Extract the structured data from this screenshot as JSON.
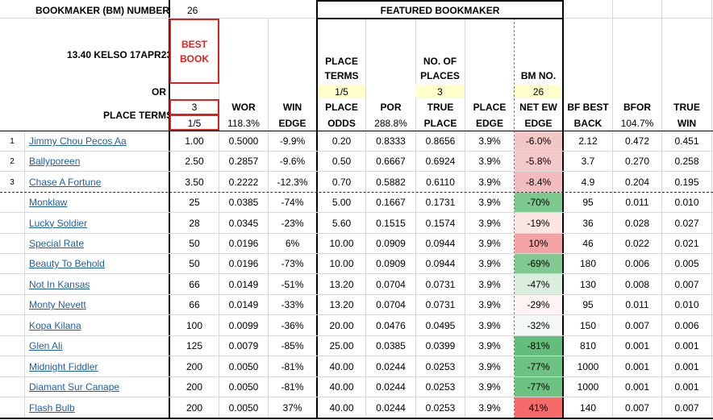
{
  "header": {
    "bm_number_label": "BOOKMAKER (BM) NUMBER",
    "bm_number_value": "26",
    "featured_label": "FEATURED BOOKMAKER",
    "race": "13.40 KELSO 17APR23",
    "best_book_line1": "BEST",
    "best_book_line2": "BOOK",
    "or_label": "OR",
    "place_terms_label": "PLACE TERMS",
    "place_terms_places": "3",
    "place_terms_fraction": "1/5",
    "featured_place_terms_1": "PLACE",
    "featured_place_terms_2": "TERMS",
    "featured_place_terms_value": "1/5",
    "featured_no_places_1": "NO. OF",
    "featured_no_places_2": "PLACES",
    "featured_no_places_value": "3",
    "featured_bm_no_label": "BM NO.",
    "featured_bm_no_value": "26"
  },
  "columns": {
    "wor": "WOR",
    "wor_sub": "118.3%",
    "win_edge_1": "WIN",
    "win_edge_2": "EDGE",
    "place_odds_1": "PLACE",
    "place_odds_2": "ODDS",
    "por": "POR",
    "por_sub": "288.8%",
    "true_place_1": "TRUE",
    "true_place_2": "PLACE",
    "place_edge_1": "PLACE",
    "place_edge_2": "EDGE",
    "net_ew_1": "NET EW",
    "net_ew_2": "EDGE",
    "bf_best_1": "BF BEST",
    "bf_best_2": "BACK",
    "bfor": "BFOR",
    "bfor_sub": "104.7%",
    "true_win_1": "TRUE",
    "true_win_2": "WIN"
  },
  "rows": [
    {
      "rank": "1",
      "name": "Jimmy Chou Pecos Aa",
      "odds": "1.00",
      "wor": "0.5000",
      "win_edge": "-9.9%",
      "place_odds": "0.20",
      "por": "0.8333",
      "true_place": "0.8656",
      "place_edge": "3.9%",
      "net_ew": "-6.0%",
      "net_color": "#f4c7c7",
      "bf": "2.12",
      "bfor": "0.472",
      "true_win": "0.451"
    },
    {
      "rank": "2",
      "name": "Ballyporeen",
      "odds": "2.50",
      "wor": "0.2857",
      "win_edge": "-9.6%",
      "place_odds": "0.50",
      "por": "0.6667",
      "true_place": "0.6924",
      "place_edge": "3.9%",
      "net_ew": "-5.8%",
      "net_color": "#f4c9c9",
      "bf": "3.7",
      "bfor": "0.270",
      "true_win": "0.258"
    },
    {
      "rank": "3",
      "name": "Chase A Fortune",
      "odds": "3.50",
      "wor": "0.2222",
      "win_edge": "-12.3%",
      "place_odds": "0.70",
      "por": "0.5882",
      "true_place": "0.6110",
      "place_edge": "3.9%",
      "net_ew": "-8.4%",
      "net_color": "#f2bcbc",
      "bf": "4.9",
      "bfor": "0.204",
      "true_win": "0.195"
    },
    {
      "rank": "",
      "name": "Monklaw",
      "odds": "25",
      "wor": "0.0385",
      "win_edge": "-74%",
      "place_odds": "5.00",
      "por": "0.1667",
      "true_place": "0.1731",
      "place_edge": "3.9%",
      "net_ew": "-70%",
      "net_color": "#7cc88e",
      "bf": "95",
      "bfor": "0.011",
      "true_win": "0.010"
    },
    {
      "rank": "",
      "name": "Lucky Soldier",
      "odds": "28",
      "wor": "0.0345",
      "win_edge": "-23%",
      "place_odds": "5.60",
      "por": "0.1515",
      "true_place": "0.1574",
      "place_edge": "3.9%",
      "net_ew": "-19%",
      "net_color": "#fbe4e4",
      "bf": "36",
      "bfor": "0.028",
      "true_win": "0.027"
    },
    {
      "rank": "",
      "name": "Special Rate",
      "odds": "50",
      "wor": "0.0196",
      "win_edge": "6%",
      "place_odds": "10.00",
      "por": "0.0909",
      "true_place": "0.0944",
      "place_edge": "3.9%",
      "net_ew": "10%",
      "net_color": "#f4a4a4",
      "bf": "46",
      "bfor": "0.022",
      "true_win": "0.021"
    },
    {
      "rank": "",
      "name": "Beauty To Behold",
      "odds": "50",
      "wor": "0.0196",
      "win_edge": "-73%",
      "place_odds": "10.00",
      "por": "0.0909",
      "true_place": "0.0944",
      "place_edge": "3.9%",
      "net_ew": "-69%",
      "net_color": "#80ca91",
      "bf": "180",
      "bfor": "0.006",
      "true_win": "0.005"
    },
    {
      "rank": "",
      "name": "Not In Kansas",
      "odds": "66",
      "wor": "0.0149",
      "win_edge": "-51%",
      "place_odds": "13.20",
      "por": "0.0704",
      "true_place": "0.0731",
      "place_edge": "3.9%",
      "net_ew": "-47%",
      "net_color": "#d9eedd",
      "bf": "130",
      "bfor": "0.008",
      "true_win": "0.007"
    },
    {
      "rank": "",
      "name": "Monty Nevett",
      "odds": "66",
      "wor": "0.0149",
      "win_edge": "-33%",
      "place_odds": "13.20",
      "por": "0.0704",
      "true_place": "0.0731",
      "place_edge": "3.9%",
      "net_ew": "-29%",
      "net_color": "#fdf3f3",
      "bf": "95",
      "bfor": "0.011",
      "true_win": "0.010"
    },
    {
      "rank": "",
      "name": "Kopa Kilana",
      "odds": "100",
      "wor": "0.0099",
      "win_edge": "-36%",
      "place_odds": "20.00",
      "por": "0.0476",
      "true_place": "0.0495",
      "place_edge": "3.9%",
      "net_ew": "-32%",
      "net_color": "#f3f8f4",
      "bf": "150",
      "bfor": "0.007",
      "true_win": "0.006"
    },
    {
      "rank": "",
      "name": "Glen Ali",
      "odds": "125",
      "wor": "0.0079",
      "win_edge": "-85%",
      "place_odds": "25.00",
      "por": "0.0385",
      "true_place": "0.0399",
      "place_edge": "3.9%",
      "net_ew": "-81%",
      "net_color": "#63be7b",
      "bf": "810",
      "bfor": "0.001",
      "true_win": "0.001"
    },
    {
      "rank": "",
      "name": "Midnight Fiddler",
      "odds": "200",
      "wor": "0.0050",
      "win_edge": "-81%",
      "place_odds": "40.00",
      "por": "0.0244",
      "true_place": "0.0253",
      "place_edge": "3.9%",
      "net_ew": "-77%",
      "net_color": "#6cc283",
      "bf": "1000",
      "bfor": "0.001",
      "true_win": "0.001"
    },
    {
      "rank": "",
      "name": "Diamant Sur Canape",
      "odds": "200",
      "wor": "0.0050",
      "win_edge": "-81%",
      "place_odds": "40.00",
      "por": "0.0244",
      "true_place": "0.0253",
      "place_edge": "3.9%",
      "net_ew": "-77%",
      "net_color": "#6cc283",
      "bf": "1000",
      "bfor": "0.001",
      "true_win": "0.001"
    },
    {
      "rank": "",
      "name": "Flash Bulb",
      "odds": "200",
      "wor": "0.0050",
      "win_edge": "37%",
      "place_odds": "40.00",
      "por": "0.0244",
      "true_place": "0.0253",
      "place_edge": "3.9%",
      "net_ew": "41%",
      "net_color": "#f8696b",
      "bf": "140",
      "bfor": "0.007",
      "true_win": "0.007"
    }
  ]
}
